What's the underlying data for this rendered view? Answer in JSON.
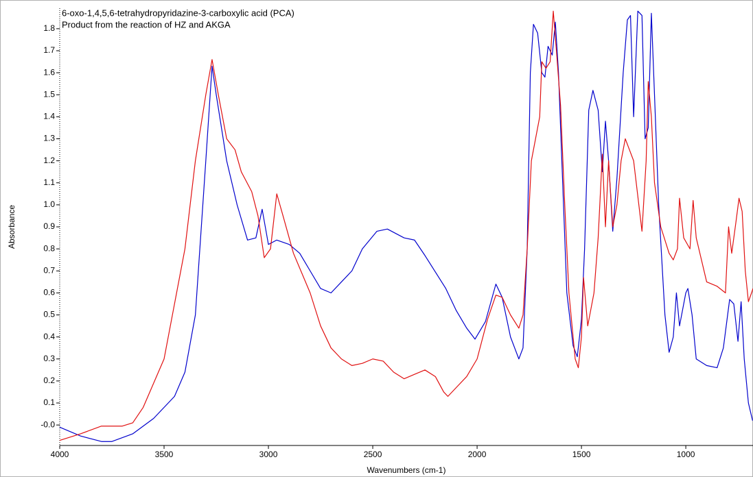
{
  "chart_data": {
    "type": "line",
    "xlabel": "Wavenumbers (cm-1)",
    "ylabel": "Absorbance",
    "xlim": [
      4000,
      678
    ],
    "ylim": [
      -0.093,
      1.893
    ],
    "xticks": [
      4000,
      3500,
      3000,
      2500,
      2000,
      1500,
      1000
    ],
    "yticks": [
      {
        "value": 0,
        "label": "-0.0"
      },
      0.1,
      0.2,
      0.3,
      0.4,
      0.5,
      0.6,
      0.7,
      0.8,
      0.9,
      {
        "value": 1,
        "label": "1.0"
      },
      1.1,
      1.2,
      1.3,
      1.4,
      1.5,
      1.6,
      1.7,
      1.8
    ],
    "series": [
      {
        "name": "6-oxo-1,4,5,6-tetrahydropyridazine-3-carboxylic acid (PCA)",
        "color": "#0000cc",
        "x": [
          4000,
          3900,
          3800,
          3750,
          3650,
          3550,
          3450,
          3400,
          3350,
          3300,
          3270,
          3250,
          3200,
          3150,
          3100,
          3060,
          3030,
          3000,
          2960,
          2900,
          2850,
          2800,
          2750,
          2700,
          2650,
          2600,
          2550,
          2480,
          2430,
          2350,
          2300,
          2250,
          2150,
          2100,
          2050,
          2010,
          1960,
          1910,
          1880,
          1840,
          1800,
          1780,
          1760,
          1745,
          1730,
          1710,
          1690,
          1675,
          1660,
          1640,
          1625,
          1610,
          1590,
          1570,
          1540,
          1520,
          1500,
          1485,
          1465,
          1445,
          1420,
          1400,
          1385,
          1370,
          1350,
          1330,
          1300,
          1280,
          1265,
          1250,
          1230,
          1210,
          1195,
          1180,
          1165,
          1150,
          1130,
          1100,
          1080,
          1060,
          1045,
          1030,
          1000,
          990,
          970,
          950,
          900,
          850,
          820,
          790,
          770,
          750,
          735,
          720,
          700,
          680
        ],
        "values": [
          -0.01,
          -0.05,
          -0.075,
          -0.075,
          -0.04,
          0.03,
          0.13,
          0.24,
          0.5,
          1.2,
          1.63,
          1.5,
          1.2,
          1.0,
          0.84,
          0.85,
          0.98,
          0.82,
          0.84,
          0.82,
          0.78,
          0.7,
          0.62,
          0.6,
          0.65,
          0.7,
          0.8,
          0.88,
          0.89,
          0.85,
          0.84,
          0.77,
          0.62,
          0.52,
          0.44,
          0.39,
          0.47,
          0.64,
          0.58,
          0.4,
          0.3,
          0.35,
          0.8,
          1.6,
          1.82,
          1.78,
          1.6,
          1.58,
          1.72,
          1.68,
          1.83,
          1.6,
          1.1,
          0.6,
          0.36,
          0.31,
          0.48,
          0.8,
          1.43,
          1.52,
          1.43,
          1.15,
          1.38,
          1.2,
          0.88,
          1.12,
          1.6,
          1.84,
          1.86,
          1.4,
          1.88,
          1.86,
          1.3,
          1.35,
          1.87,
          1.5,
          1.0,
          0.5,
          0.33,
          0.4,
          0.6,
          0.45,
          0.6,
          0.62,
          0.5,
          0.3,
          0.27,
          0.26,
          0.35,
          0.57,
          0.55,
          0.38,
          0.56,
          0.3,
          0.1,
          0.02
        ]
      },
      {
        "name": "Product from the reaction of HZ and AKGA",
        "color": "#e01010",
        "x": [
          4000,
          3900,
          3800,
          3700,
          3650,
          3600,
          3500,
          3400,
          3350,
          3300,
          3270,
          3240,
          3200,
          3160,
          3130,
          3080,
          3050,
          3020,
          2990,
          2960,
          2930,
          2880,
          2800,
          2750,
          2700,
          2650,
          2600,
          2550,
          2500,
          2450,
          2400,
          2350,
          2300,
          2250,
          2200,
          2160,
          2140,
          2100,
          2050,
          2000,
          1950,
          1910,
          1880,
          1840,
          1800,
          1780,
          1760,
          1740,
          1720,
          1700,
          1690,
          1670,
          1650,
          1635,
          1620,
          1600,
          1580,
          1560,
          1530,
          1515,
          1500,
          1490,
          1470,
          1440,
          1420,
          1400,
          1385,
          1370,
          1350,
          1330,
          1310,
          1290,
          1270,
          1250,
          1210,
          1190,
          1180,
          1165,
          1150,
          1120,
          1080,
          1060,
          1040,
          1030,
          1010,
          980,
          965,
          950,
          900,
          850,
          810,
          795,
          780,
          760,
          745,
          730,
          715,
          700,
          685,
          678
        ],
        "values": [
          -0.07,
          -0.04,
          -0.005,
          -0.005,
          0.01,
          0.08,
          0.3,
          0.8,
          1.2,
          1.5,
          1.66,
          1.5,
          1.3,
          1.25,
          1.15,
          1.06,
          0.95,
          0.76,
          0.8,
          1.05,
          0.95,
          0.78,
          0.6,
          0.45,
          0.35,
          0.3,
          0.27,
          0.28,
          0.3,
          0.29,
          0.24,
          0.21,
          0.23,
          0.25,
          0.22,
          0.15,
          0.13,
          0.17,
          0.22,
          0.3,
          0.48,
          0.59,
          0.58,
          0.5,
          0.44,
          0.5,
          0.8,
          1.2,
          1.3,
          1.4,
          1.65,
          1.62,
          1.65,
          1.88,
          1.7,
          1.45,
          1.0,
          0.6,
          0.3,
          0.26,
          0.4,
          0.67,
          0.45,
          0.6,
          0.85,
          1.23,
          0.9,
          1.2,
          0.9,
          1.0,
          1.2,
          1.3,
          1.25,
          1.2,
          0.88,
          1.2,
          1.56,
          1.4,
          1.1,
          0.9,
          0.78,
          0.75,
          0.8,
          1.03,
          0.85,
          0.8,
          1.02,
          0.85,
          0.65,
          0.63,
          0.6,
          0.9,
          0.78,
          0.92,
          1.03,
          0.97,
          0.7,
          0.56,
          0.6,
          0.62
        ]
      }
    ]
  }
}
